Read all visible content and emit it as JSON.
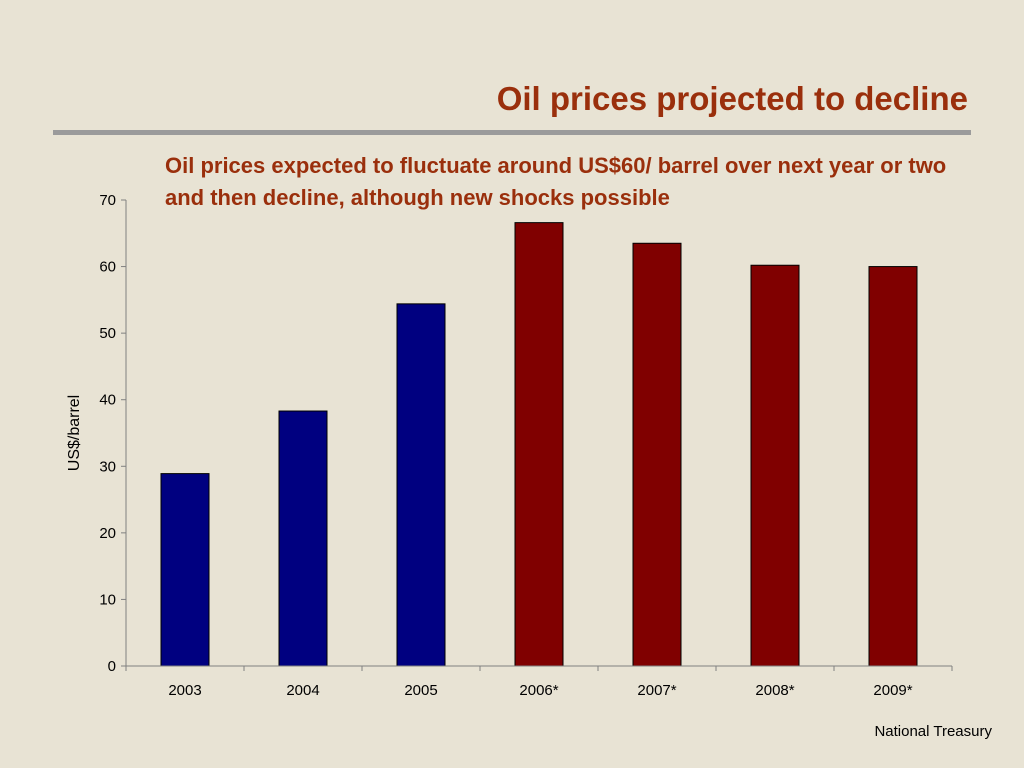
{
  "slide": {
    "title": "Oil prices projected to decline",
    "subtitle": "Oil prices expected to fluctuate around US$60/ barrel over next year or two and then decline, although new shocks possible",
    "footer": "National Treasury"
  },
  "colors": {
    "background": "#e8e3d4",
    "title": "#9a2f0c",
    "actual_bar": "#000080",
    "projected_bar": "#800000",
    "rule": "#9b9b9b"
  },
  "chart_data": {
    "type": "bar",
    "categories": [
      "2003",
      "2004",
      "2005",
      "2006*",
      "2007*",
      "2008*",
      "2009*"
    ],
    "series": [
      {
        "values": [
          28.9,
          38.3,
          54.4,
          66.6,
          63.5,
          60.2,
          60.0
        ],
        "colors": [
          "#000080",
          "#000080",
          "#000080",
          "#800000",
          "#800000",
          "#800000",
          "#800000"
        ]
      }
    ],
    "xlabel": "",
    "ylabel": "US$/barrel",
    "ylim": [
      0,
      70
    ],
    "yticks": [
      0,
      10,
      20,
      30,
      40,
      50,
      60,
      70
    ],
    "grid": false,
    "legend": "none"
  }
}
